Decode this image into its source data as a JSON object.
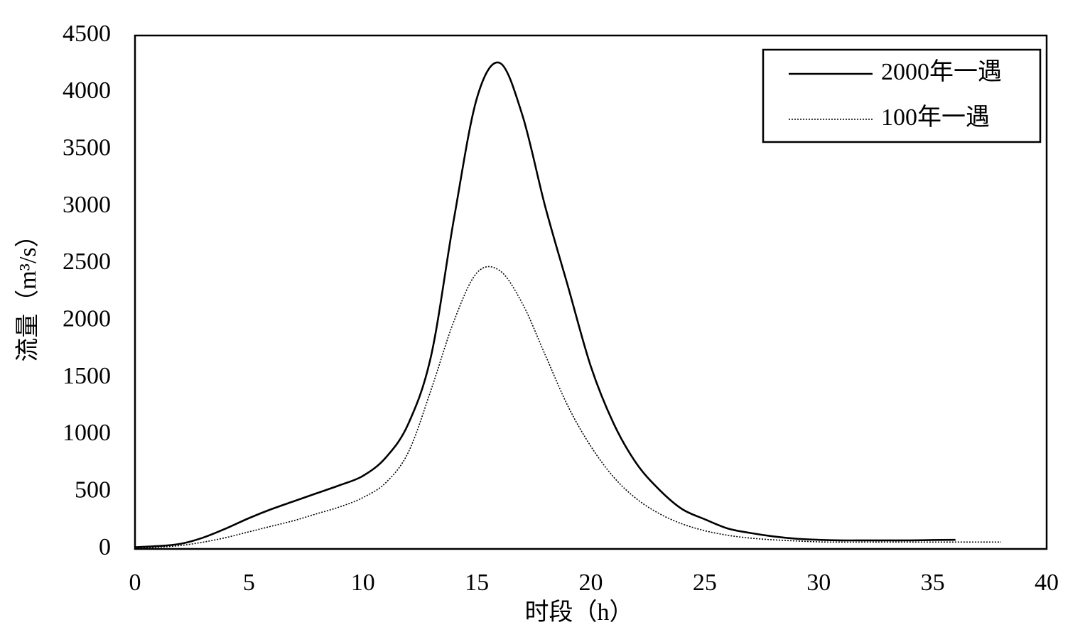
{
  "chart_data": {
    "type": "line",
    "x": [
      0,
      1,
      2,
      3,
      4,
      5,
      6,
      7,
      8,
      9,
      10,
      11,
      12,
      13,
      14,
      15,
      16,
      17,
      18,
      19,
      20,
      21,
      22,
      23,
      24,
      25,
      26,
      27,
      28,
      29,
      30,
      31,
      32,
      33,
      34,
      35,
      36,
      37,
      38
    ],
    "series": [
      {
        "name": "2000年一遇",
        "color": "#000000",
        "style": "solid",
        "values": [
          15,
          25,
          45,
          100,
          180,
          270,
          350,
          420,
          490,
          560,
          640,
          800,
          1100,
          1700,
          2900,
          3950,
          4260,
          3800,
          3000,
          2300,
          1600,
          1100,
          750,
          520,
          350,
          260,
          180,
          140,
          110,
          90,
          80,
          75,
          75,
          75,
          75,
          78,
          80,
          null,
          null
        ]
      },
      {
        "name": "100年一遇",
        "color": "#000000",
        "style": "dotted",
        "values": [
          5,
          15,
          30,
          60,
          100,
          150,
          200,
          250,
          310,
          370,
          450,
          580,
          850,
          1400,
          2000,
          2420,
          2440,
          2150,
          1700,
          1250,
          900,
          630,
          440,
          310,
          220,
          160,
          120,
          95,
          80,
          70,
          62,
          60,
          60,
          60,
          60,
          60,
          60,
          60,
          60
        ]
      }
    ],
    "x_label": "时段（h）",
    "y_label": "流量（m³/s）",
    "xlim": [
      0,
      40
    ],
    "xticks": [
      0,
      5,
      10,
      15,
      20,
      25,
      30,
      35,
      40
    ],
    "ylim": [
      0,
      4500
    ],
    "yticks": [
      0,
      500,
      1000,
      1500,
      2000,
      2500,
      3000,
      3500,
      4000,
      4500
    ],
    "grid": false,
    "legend": "upper right"
  }
}
